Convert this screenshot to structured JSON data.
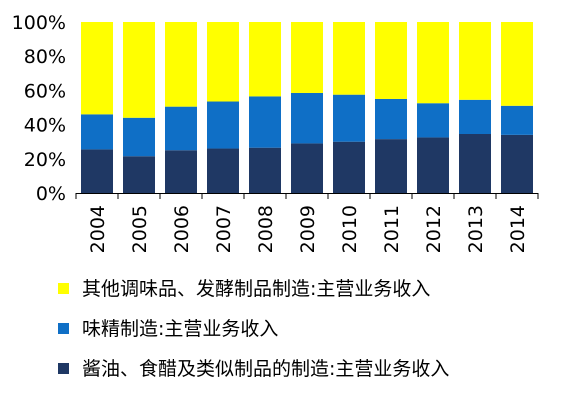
{
  "chart_data": {
    "type": "bar",
    "stacked": true,
    "categories": [
      "2004",
      "2005",
      "2006",
      "2007",
      "2008",
      "2009",
      "2010",
      "2011",
      "2012",
      "2013",
      "2014"
    ],
    "series": [
      {
        "name": "酱油、食醋及类似制品的制造:主营业务收入",
        "color": "#1f3864",
        "values": [
          25.5,
          21.5,
          25,
          26,
          26.5,
          29,
          30,
          31.5,
          32.5,
          34.5,
          34
        ]
      },
      {
        "name": "味精制造:主营业务收入",
        "color": "#0f6fc6",
        "values": [
          20.5,
          22.5,
          25.5,
          27.5,
          30,
          29.5,
          27.5,
          23.5,
          20,
          20,
          17
        ]
      },
      {
        "name": "其他调味品、发酵制品制造:主营业务收入",
        "color": "#ffff00",
        "values": [
          54,
          56,
          49.5,
          46.5,
          43.5,
          41.5,
          42.5,
          45,
          47.5,
          45.5,
          49
        ]
      }
    ],
    "ylim": [
      0,
      100
    ],
    "yticks": [
      "0%",
      "20%",
      "40%",
      "60%",
      "80%",
      "100%"
    ],
    "grid": false,
    "legend_position": "bottom",
    "legend_order": [
      "其他调味品、发酵制品制造:主营业务收入",
      "味精制造:主营业务收入",
      "酱油、食醋及类似制品的制造:主营业务收入"
    ]
  }
}
